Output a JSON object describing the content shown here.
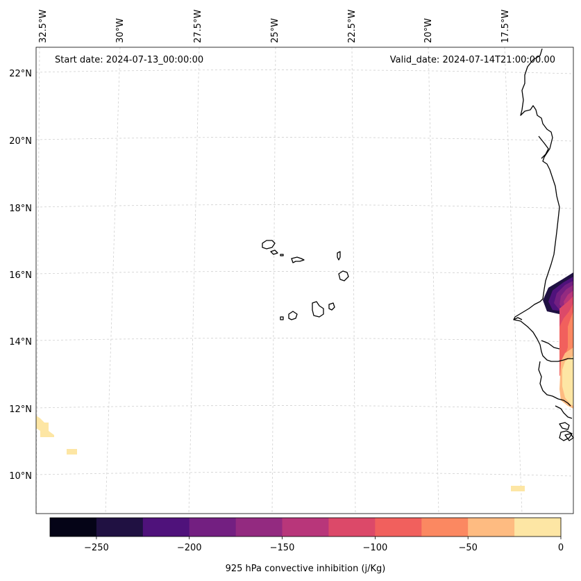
{
  "map": {
    "start_date": "Start date: 2024-07-13_00:00:00",
    "valid_date": "Valid_date: 2024-07-14T21:00:00.00",
    "lon_labels": [
      "32.5°W",
      "30°W",
      "27.5°W",
      "25°W",
      "22.5°W",
      "20°W",
      "17.5°W"
    ],
    "lat_labels": [
      "22°N",
      "20°N",
      "18°N",
      "16°N",
      "14°N",
      "12°N",
      "10°N"
    ],
    "colorbar": {
      "label": "925 hPa convective inhibition (j/Kg)",
      "ticks": [
        "−250",
        "−200",
        "−150",
        "−100",
        "−50",
        "0"
      ],
      "levels": [
        -275,
        -250,
        -225,
        -200,
        -175,
        -150,
        -125,
        -100,
        -75,
        -50,
        -25,
        0
      ],
      "colors": [
        "#050417",
        "#201142",
        "#4f127b",
        "#731f81",
        "#932a80",
        "#b8367a",
        "#dc4969",
        "#f1605d",
        "#fb8861",
        "#febb81",
        "#fde6a4"
      ]
    },
    "colors": {
      "coastline": "#000000",
      "gridline": "#cccccc",
      "low_cin_fill": "#fde6a4"
    }
  }
}
